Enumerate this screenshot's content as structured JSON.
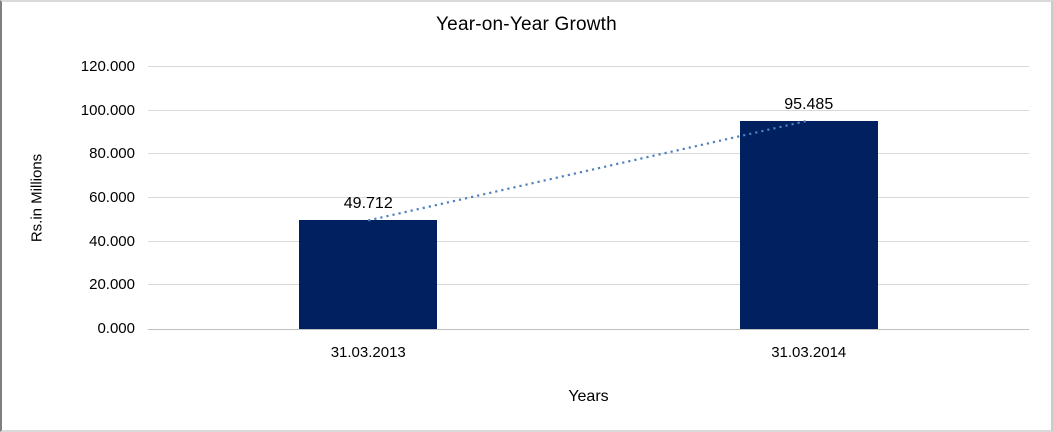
{
  "chart_data": {
    "type": "bar",
    "title": "Year-on-Year Growth",
    "xlabel": "Years",
    "ylabel": "Rs.in Millions",
    "categories": [
      "31.03.2013",
      "31.03.2014"
    ],
    "values": [
      49.712,
      95.485
    ],
    "data_labels": [
      "49.712",
      "95.485"
    ],
    "ylim": [
      0,
      120
    ],
    "ytick_step": 20,
    "ytick_labels": [
      "0.000",
      "20.000",
      "40.000",
      "60.000",
      "80.000",
      "100.000",
      "120.000"
    ],
    "grid": true,
    "legend_position": "none",
    "trendline": {
      "style": "dotted",
      "connects": "bar-tops",
      "color": "#4f81bd"
    },
    "colors": {
      "bar": "#002060",
      "trendline": "#4f81bd",
      "gridline": "#d9d9d9",
      "axis_line": "#bfbfbf",
      "text": "#000000"
    }
  }
}
